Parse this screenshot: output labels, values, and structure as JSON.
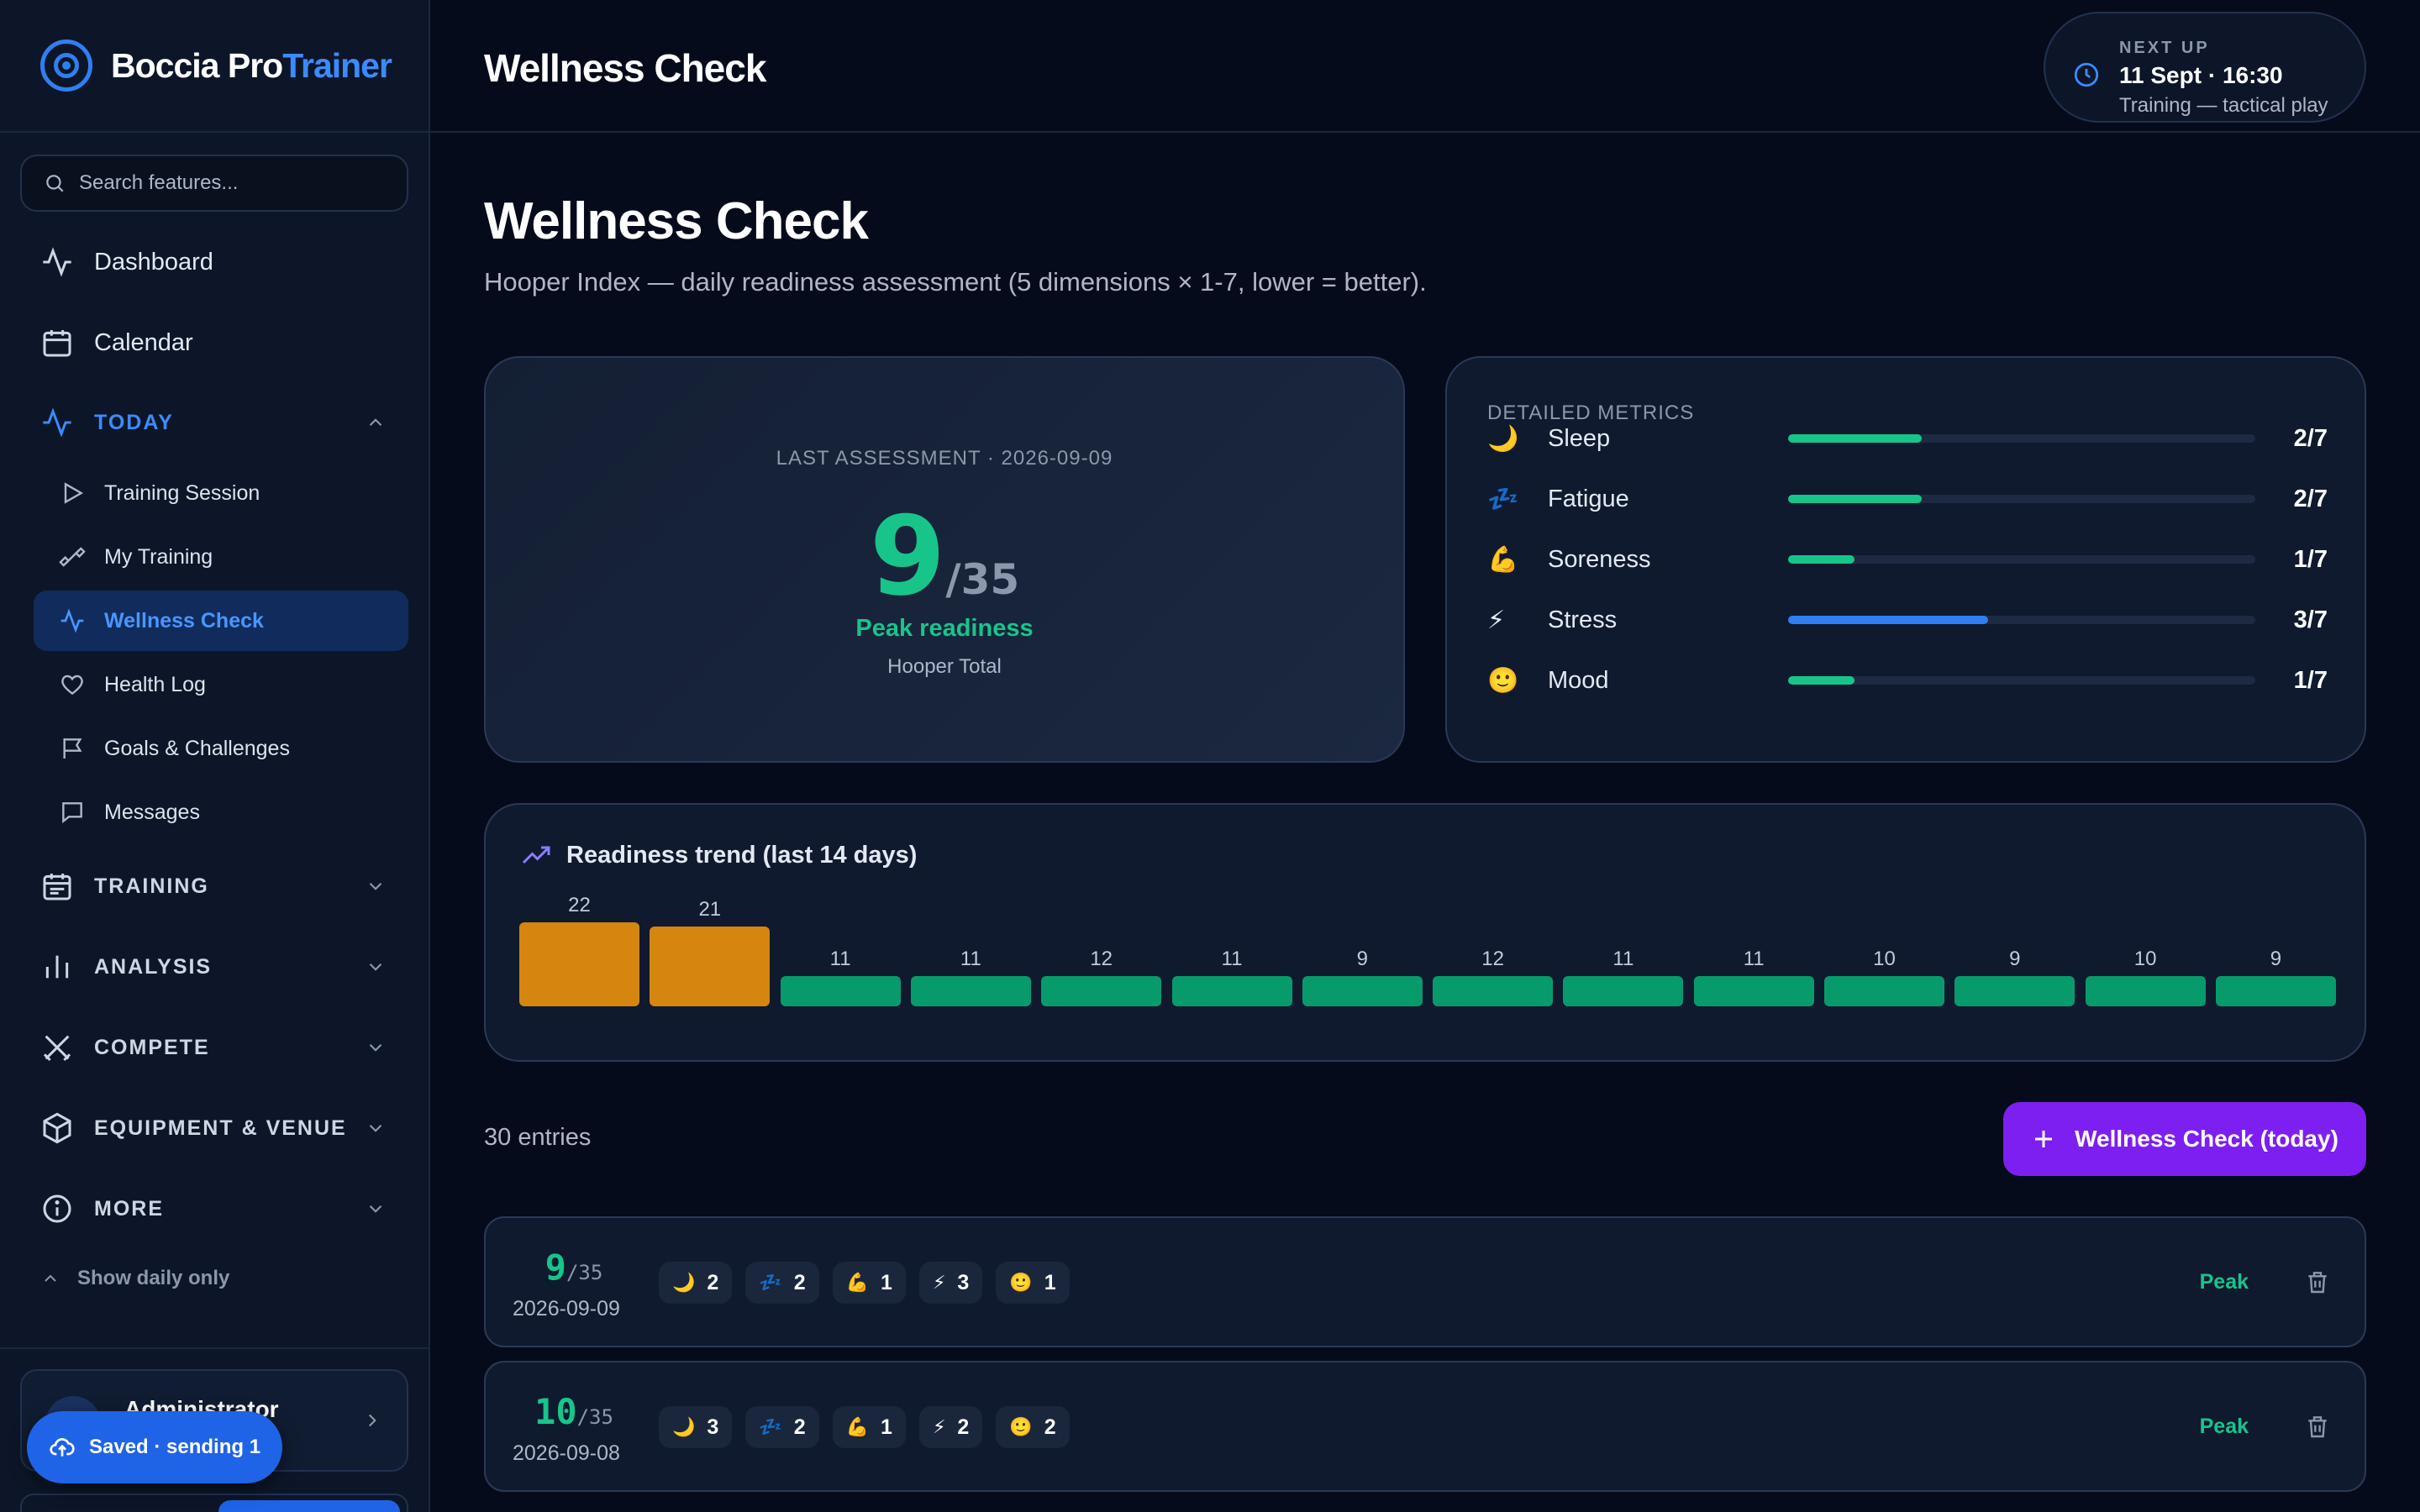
{
  "app": {
    "brand_primary": "Boccia Pro",
    "brand_accent": "Trainer",
    "colors": {
      "accent": "#2f7ff0",
      "good": "#17c58a",
      "warn": "#d4860f",
      "cta": "#7c1ff0"
    }
  },
  "search": {
    "placeholder": "Search features..."
  },
  "nav": {
    "dashboard": "Dashboard",
    "calendar": "Calendar",
    "today": "TODAY",
    "today_items": [
      {
        "label": "Training Session",
        "icon": "play-icon"
      },
      {
        "label": "My Training",
        "icon": "dumbbell-icon"
      },
      {
        "label": "Wellness Check",
        "icon": "activity-icon",
        "active": true
      },
      {
        "label": "Health Log",
        "icon": "heart-icon"
      },
      {
        "label": "Goals & Challenges",
        "icon": "flag-icon"
      },
      {
        "label": "Messages",
        "icon": "message-icon"
      }
    ],
    "training": "TRAINING",
    "analysis": "ANALYSIS",
    "compete": "COMPETE",
    "equipment": "EQUIPMENT & VENUE",
    "more": "MORE",
    "show_daily": "Show daily only"
  },
  "user": {
    "name": "Administrator"
  },
  "toast": {
    "label": "Saved · sending 1"
  },
  "header": {
    "title": "Wellness Check",
    "next_up_label": "NEXT UP",
    "next_up_date": "11 Sept · 16:30",
    "next_up_desc": "Training — tactical play"
  },
  "page": {
    "title": "Wellness Check",
    "subtitle": "Hooper Index — daily readiness assessment (5 dimensions × 1-7, lower = better)."
  },
  "score": {
    "label": "LAST ASSESSMENT · 2026-09-09",
    "value": "9",
    "max": "/35",
    "status": "Peak readiness",
    "sub": "Hooper Total"
  },
  "metrics": {
    "label": "DETAILED METRICS",
    "items": [
      {
        "icon": "🌙",
        "name": "Sleep",
        "value": 2,
        "display": "2/7",
        "color": "#17c58a"
      },
      {
        "icon": "💤",
        "name": "Fatigue",
        "value": 2,
        "display": "2/7",
        "color": "#17c58a"
      },
      {
        "icon": "💪",
        "name": "Soreness",
        "value": 1,
        "display": "1/7",
        "color": "#17c58a"
      },
      {
        "icon": "⚡",
        "name": "Stress",
        "value": 3,
        "display": "3/7",
        "color": "#2f7ff0"
      },
      {
        "icon": "🙂",
        "name": "Mood",
        "value": 1,
        "display": "1/7",
        "color": "#17c58a"
      }
    ]
  },
  "trend": {
    "title": "Readiness trend (last 14 days)"
  },
  "chart_data": {
    "type": "bar",
    "title": "Readiness trend (last 14 days)",
    "values": [
      22,
      21,
      11,
      11,
      12,
      11,
      9,
      12,
      11,
      11,
      10,
      9,
      10,
      9
    ],
    "ylim": [
      0,
      35
    ],
    "colors": [
      "#d4860f",
      "#d4860f",
      "#079b6c",
      "#079b6c",
      "#079b6c",
      "#079b6c",
      "#079b6c",
      "#079b6c",
      "#079b6c",
      "#079b6c",
      "#079b6c",
      "#079b6c",
      "#079b6c",
      "#079b6c"
    ],
    "grid": false
  },
  "list": {
    "count": "30 entries",
    "add_label": "Wellness Check (today)",
    "entries": [
      {
        "score": "9",
        "max": "/35",
        "date": "2026-09-09",
        "chips": [
          "2",
          "2",
          "1",
          "3",
          "1"
        ],
        "status": "Peak"
      },
      {
        "score": "10",
        "max": "/35",
        "date": "2026-09-08",
        "chips": [
          "3",
          "2",
          "1",
          "2",
          "2"
        ],
        "status": "Peak"
      }
    ],
    "chip_icons": [
      "🌙",
      "💤",
      "💪",
      "⚡",
      "🙂"
    ]
  }
}
